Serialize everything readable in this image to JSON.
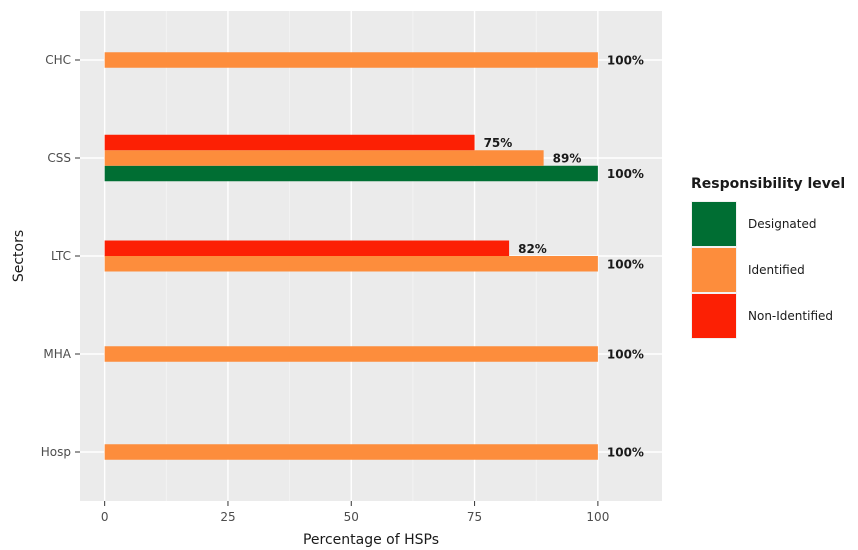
{
  "chart_data": {
    "type": "bar",
    "orientation": "horizontal",
    "title": "",
    "xlabel": "Percentage of HSPs",
    "ylabel": "Sectors",
    "xlim": [
      -5,
      113
    ],
    "x_ticks": [
      "0",
      "25",
      "50",
      "75",
      "100"
    ],
    "categories": [
      "CHC",
      "CSS",
      "LTC",
      "MHA",
      "Hosp"
    ],
    "legend_title": "Responsibility level",
    "legend_position": "right",
    "grid": true,
    "series": [
      {
        "name": "Designated",
        "color": "#006e33",
        "values": [
          null,
          100,
          null,
          null,
          null
        ],
        "labels": [
          "",
          "100%",
          "",
          "",
          ""
        ]
      },
      {
        "name": "Identified",
        "color": "#fd8d3c",
        "values": [
          100,
          89,
          100,
          100,
          100
        ],
        "labels": [
          "100%",
          "89%",
          "100%",
          "100%",
          "100%"
        ]
      },
      {
        "name": "Non-Identified",
        "color": "#fc2004",
        "values": [
          null,
          75,
          82,
          null,
          null
        ],
        "labels": [
          "",
          "75%",
          "82%",
          "",
          ""
        ]
      }
    ]
  }
}
